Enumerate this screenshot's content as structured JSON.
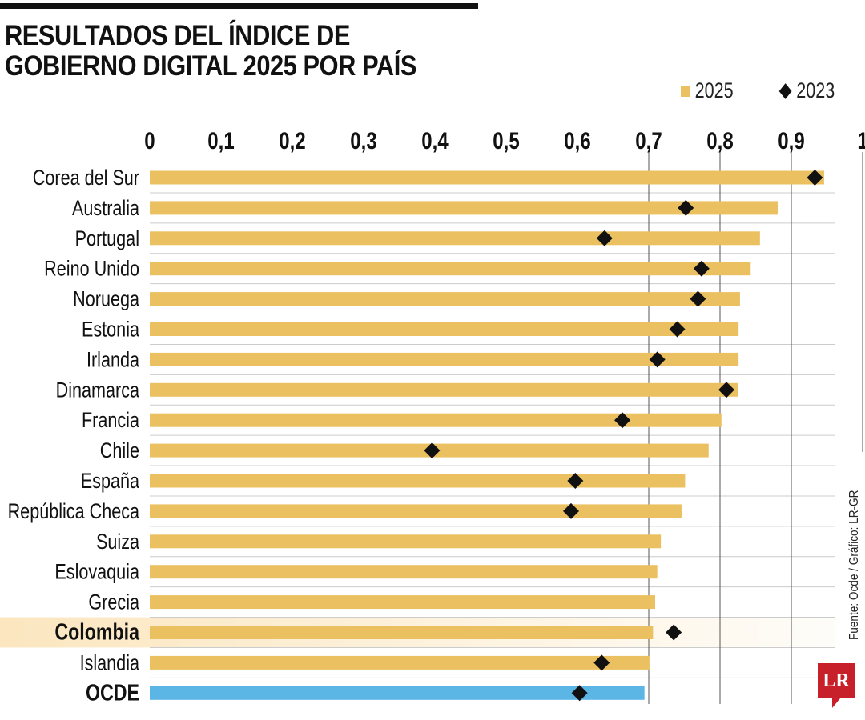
{
  "title": "RESULTADOS DEL ÍNDICE DE\nGOBIERNO DIGITAL 2025 POR PAÍS",
  "source": "Fuente: Ocde / Gráfico: LR-GR",
  "logo": "LR",
  "colors": {
    "bar_2025": "#EBC060",
    "bar_ocde": "#5BB5E5",
    "marker_2023": "#111111",
    "highlight": "#FBE6BF",
    "logo": "#C8202A"
  },
  "chart_data": {
    "type": "bar",
    "orientation": "horizontal",
    "xlim": [
      0,
      1
    ],
    "x_ticks": [
      "0",
      "0,1",
      "0,2",
      "0,3",
      "0,4",
      "0,5",
      "0,6",
      "0,7",
      "0,8",
      "0,9",
      "1"
    ],
    "legend": {
      "position": "top-right",
      "entries": [
        "2025",
        "2023"
      ]
    },
    "categories": [
      "Corea del Sur",
      "Australia",
      "Portugal",
      "Reino Unido",
      "Noruega",
      "Estonia",
      "Irlanda",
      "Dinamarca",
      "Francia",
      "Chile",
      "España",
      "República Checa",
      "Suiza",
      "Eslovaquia",
      "Grecia",
      "Colombia",
      "Islandia",
      "OCDE"
    ],
    "bold_categories": [
      "Colombia",
      "OCDE"
    ],
    "highlighted_category": "Colombia",
    "series": [
      {
        "name": "2025",
        "mark": "bar",
        "values": [
          0.946,
          0.882,
          0.856,
          0.843,
          0.828,
          0.826,
          0.826,
          0.825,
          0.802,
          0.784,
          0.751,
          0.746,
          0.717,
          0.712,
          0.709,
          0.706,
          0.701,
          0.694
        ]
      },
      {
        "name": "2023",
        "mark": "diamond",
        "values": [
          0.933,
          0.752,
          0.638,
          0.774,
          0.769,
          0.74,
          0.712,
          0.809,
          0.663,
          0.396,
          0.597,
          0.591,
          null,
          null,
          null,
          0.735,
          0.634,
          0.603
        ]
      }
    ]
  }
}
